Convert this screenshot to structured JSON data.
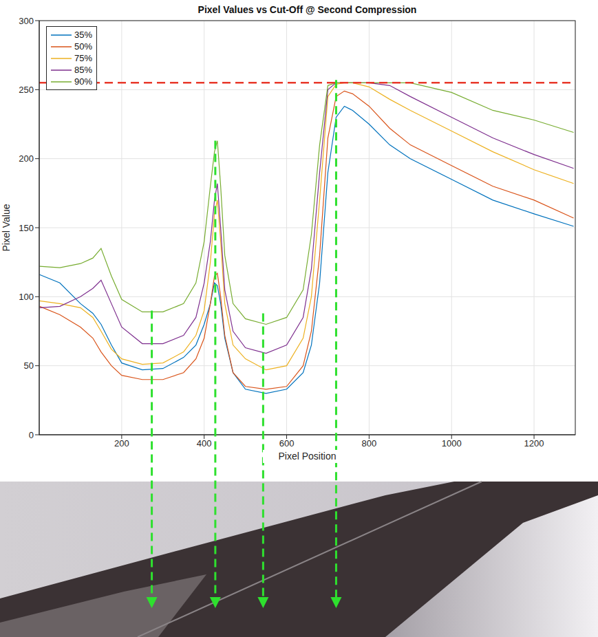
{
  "chart_data": {
    "type": "line",
    "title": "Pixel Values vs Cut-Off @ Second Compression",
    "x_label": "Pixel Position",
    "y_label": "Pixel Value",
    "x": [
      1,
      50,
      100,
      130,
      150,
      175,
      200,
      250,
      300,
      350,
      380,
      400,
      415,
      425,
      432,
      440,
      450,
      470,
      500,
      550,
      600,
      640,
      660,
      680,
      700,
      720,
      740,
      760,
      800,
      850,
      900,
      1000,
      1100,
      1200,
      1296
    ],
    "series": [
      {
        "name": "35%",
        "color": "#0072bd",
        "values": [
          116,
          110,
          95,
          88,
          80,
          65,
          52,
          47,
          48,
          56,
          65,
          80,
          95,
          110,
          108,
          95,
          70,
          45,
          33,
          30,
          33,
          45,
          65,
          110,
          190,
          230,
          238,
          235,
          225,
          210,
          200,
          185,
          170,
          160,
          151
        ]
      },
      {
        "name": "50%",
        "color": "#d95319",
        "values": [
          93,
          87,
          78,
          70,
          60,
          50,
          43,
          40,
          40,
          45,
          55,
          70,
          95,
          115,
          117,
          100,
          72,
          45,
          35,
          33,
          35,
          50,
          75,
          130,
          215,
          245,
          249,
          247,
          238,
          222,
          210,
          195,
          180,
          170,
          157
        ]
      },
      {
        "name": "75%",
        "color": "#edb120",
        "values": [
          97,
          95,
          92,
          85,
          75,
          62,
          55,
          51,
          52,
          60,
          72,
          90,
          125,
          160,
          170,
          140,
          95,
          65,
          55,
          47,
          50,
          70,
          100,
          170,
          245,
          254,
          255,
          255,
          252,
          243,
          235,
          220,
          205,
          192,
          182
        ]
      },
      {
        "name": "85%",
        "color": "#7e2f8e",
        "values": [
          92,
          93,
          100,
          106,
          112,
          95,
          78,
          66,
          66,
          72,
          85,
          110,
          140,
          170,
          182,
          150,
          105,
          75,
          63,
          59,
          65,
          85,
          120,
          190,
          250,
          255,
          255,
          255,
          255,
          253,
          245,
          230,
          215,
          203,
          193
        ]
      },
      {
        "name": "90%",
        "color": "#77ac30",
        "values": [
          122,
          121,
          124,
          128,
          135,
          115,
          98,
          89,
          89,
          95,
          110,
          140,
          180,
          205,
          213,
          180,
          130,
          95,
          84,
          80,
          85,
          105,
          145,
          210,
          253,
          255,
          255,
          255,
          255,
          255,
          255,
          248,
          235,
          228,
          219
        ]
      }
    ],
    "xlim": [
      0,
      1300
    ],
    "xticks": [
      200,
      400,
      600,
      800,
      1000,
      1200
    ],
    "ylim": [
      0,
      300
    ],
    "yticks": [
      0,
      50,
      100,
      150,
      200,
      250,
      300
    ],
    "grid": true,
    "legend": "top-left",
    "reference_line": {
      "y": 255,
      "color": "#e8382a",
      "line_style": "dashed"
    },
    "arrows": {
      "x": [
        273,
        427,
        543,
        720
      ],
      "y_top": [
        90,
        213,
        88,
        257
      ],
      "color": "#2ee02e",
      "line_style": "dashed"
    }
  }
}
